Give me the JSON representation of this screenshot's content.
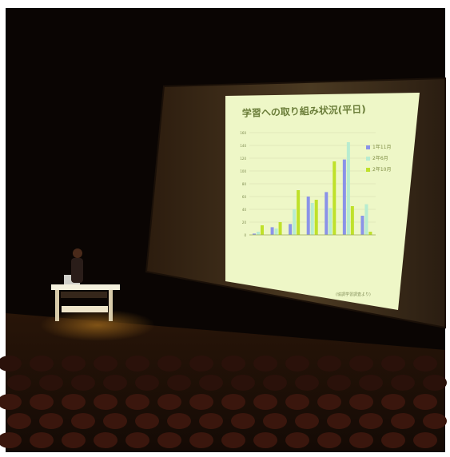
{
  "photo": {
    "subject": "lecture hall presentation"
  },
  "slide": {
    "title": "学習への取り組み状況(平日)",
    "source_note": "(協調学習調査より)",
    "legend": [
      "1年11月",
      "2年6月",
      "2年10月"
    ],
    "series_colors": [
      "#8a93e8",
      "#b7ecd0",
      "#bfe12a"
    ],
    "y_ticks": [
      "160",
      "140",
      "120",
      "100",
      "80",
      "60",
      "40",
      "20",
      "0"
    ],
    "categories": [
      "",
      "",
      "",
      "",
      "",
      "",
      ""
    ]
  },
  "chart_data": {
    "type": "bar",
    "title": "学習への取り組み状況(平日)",
    "categories": [
      "",
      "",
      "",
      "",
      "",
      "",
      ""
    ],
    "series": [
      {
        "name": "1年11月",
        "values": [
          2,
          12,
          17,
          60,
          67,
          118,
          30
        ]
      },
      {
        "name": "2年6月",
        "values": [
          5,
          10,
          40,
          50,
          42,
          145,
          48
        ]
      },
      {
        "name": "2年10月",
        "values": [
          15,
          20,
          70,
          55,
          115,
          45,
          5
        ]
      }
    ],
    "ylim": [
      0,
      160
    ],
    "legend_position": "right"
  }
}
